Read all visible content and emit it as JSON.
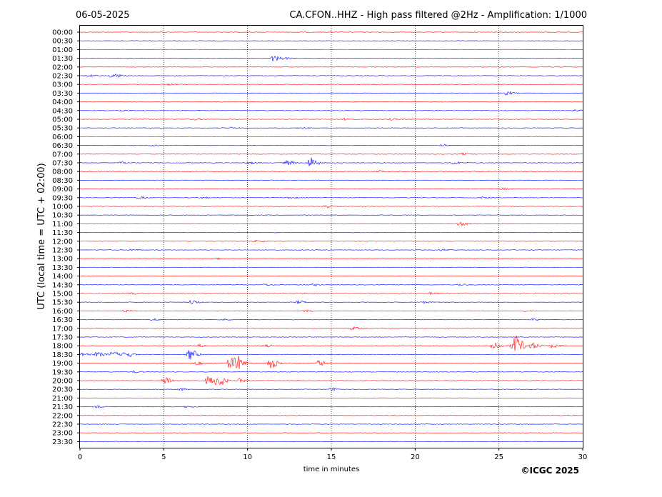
{
  "header": {
    "date": "06-05-2025",
    "title": "CA.CFON..HHZ - High pass filtered @2Hz - Amplification: 1/1000"
  },
  "footer": {
    "copyright": "©ICGC 2025"
  },
  "chart_data": {
    "type": "line",
    "title": "CA.CFON..HHZ - High pass filtered @2Hz - Amplification: 1/1000",
    "xlabel": "time in minutes",
    "ylabel": "UTC (local time = UTC + 02:00)",
    "xlim": [
      0,
      30
    ],
    "x_ticks": [
      0,
      5,
      10,
      15,
      20,
      25,
      30
    ],
    "x_tick_labels": [
      "0",
      "5",
      "10",
      "15",
      "20",
      "25",
      "30"
    ],
    "grid": "vertical dotted lines at each x tick",
    "trace_colors": [
      "#ff0000",
      "#0000ff"
    ],
    "rows": [
      {
        "label": "00:00",
        "color": "#ff0000",
        "events": []
      },
      {
        "label": "00:30",
        "color": "#0000ff",
        "events": []
      },
      {
        "label": "01:00",
        "color": "#ff0000",
        "events": []
      },
      {
        "label": "01:30",
        "color": "#0000ff",
        "events": [
          {
            "t": 11.5,
            "amp": 0.35
          },
          {
            "t": 12.2,
            "amp": 0.12
          }
        ]
      },
      {
        "label": "02:00",
        "color": "#ff0000",
        "events": []
      },
      {
        "label": "02:30",
        "color": "#0000ff",
        "events": [
          {
            "t": 0.5,
            "amp": 0.12
          },
          {
            "t": 1.9,
            "amp": 0.35
          }
        ]
      },
      {
        "label": "03:00",
        "color": "#ff0000",
        "events": [
          {
            "t": 5.3,
            "amp": 0.1
          }
        ]
      },
      {
        "label": "03:30",
        "color": "#0000ff",
        "events": [
          {
            "t": 25.4,
            "amp": 0.22
          }
        ]
      },
      {
        "label": "04:00",
        "color": "#ff0000",
        "events": []
      },
      {
        "label": "04:30",
        "color": "#0000ff",
        "events": [
          {
            "t": 2.3,
            "amp": 0.1
          },
          {
            "t": 29.5,
            "amp": 0.1
          }
        ]
      },
      {
        "label": "05:00",
        "color": "#ff0000",
        "events": [
          {
            "t": 6.8,
            "amp": 0.1
          },
          {
            "t": 15.8,
            "amp": 0.12
          },
          {
            "t": 18.5,
            "amp": 0.1
          }
        ]
      },
      {
        "label": "05:30",
        "color": "#0000ff",
        "events": [
          {
            "t": 8.9,
            "amp": 0.12
          },
          {
            "t": 13.1,
            "amp": 0.12
          }
        ]
      },
      {
        "label": "06:00",
        "color": "#ff0000",
        "events": []
      },
      {
        "label": "06:30",
        "color": "#0000ff",
        "events": [
          {
            "t": 4.2,
            "amp": 0.12
          },
          {
            "t": 21.6,
            "amp": 0.1
          }
        ]
      },
      {
        "label": "07:00",
        "color": "#ff0000",
        "events": [
          {
            "t": 22.8,
            "amp": 0.12
          }
        ]
      },
      {
        "label": "07:30",
        "color": "#0000ff",
        "events": [
          {
            "t": 2.4,
            "amp": 0.12
          },
          {
            "t": 10.1,
            "amp": 0.15
          },
          {
            "t": 12.3,
            "amp": 0.3
          },
          {
            "t": 13.7,
            "amp": 0.75
          },
          {
            "t": 22.2,
            "amp": 0.2
          }
        ]
      },
      {
        "label": "08:00",
        "color": "#ff0000",
        "events": [
          {
            "t": 17.8,
            "amp": 0.12
          }
        ]
      },
      {
        "label": "08:30",
        "color": "#0000ff",
        "events": []
      },
      {
        "label": "09:00",
        "color": "#ff0000",
        "events": [
          {
            "t": 25.2,
            "amp": 0.12
          }
        ]
      },
      {
        "label": "09:30",
        "color": "#0000ff",
        "events": [
          {
            "t": 3.5,
            "amp": 0.12
          },
          {
            "t": 7.3,
            "amp": 0.12
          },
          {
            "t": 12.5,
            "amp": 0.1
          },
          {
            "t": 24.0,
            "amp": 0.1
          }
        ]
      },
      {
        "label": "10:00",
        "color": "#ff0000",
        "events": [
          {
            "t": 14.6,
            "amp": 0.25
          }
        ]
      },
      {
        "label": "10:30",
        "color": "#0000ff",
        "events": []
      },
      {
        "label": "11:00",
        "color": "#ff0000",
        "events": [
          {
            "t": 22.6,
            "amp": 0.28
          }
        ]
      },
      {
        "label": "11:30",
        "color": "#0000ff",
        "events": []
      },
      {
        "label": "12:00",
        "color": "#ff0000",
        "events": [
          {
            "t": 10.5,
            "amp": 0.1
          }
        ]
      },
      {
        "label": "12:30",
        "color": "#0000ff",
        "events": [
          {
            "t": 3.0,
            "amp": 0.12
          },
          {
            "t": 21.5,
            "amp": 0.1
          }
        ]
      },
      {
        "label": "13:00",
        "color": "#ff0000",
        "events": [
          {
            "t": 8.0,
            "amp": 0.1
          }
        ]
      },
      {
        "label": "13:30",
        "color": "#0000ff",
        "events": []
      },
      {
        "label": "14:00",
        "color": "#ff0000",
        "events": []
      },
      {
        "label": "14:30",
        "color": "#0000ff",
        "events": [
          {
            "t": 11.0,
            "amp": 0.1
          },
          {
            "t": 13.9,
            "amp": 0.12
          },
          {
            "t": 22.6,
            "amp": 0.15
          }
        ]
      },
      {
        "label": "15:00",
        "color": "#ff0000",
        "events": [
          {
            "t": 3.0,
            "amp": 0.1
          },
          {
            "t": 20.9,
            "amp": 0.15
          }
        ]
      },
      {
        "label": "15:30",
        "color": "#0000ff",
        "events": [
          {
            "t": 6.6,
            "amp": 0.25
          },
          {
            "t": 13.0,
            "amp": 0.2
          },
          {
            "t": 20.5,
            "amp": 0.12
          }
        ]
      },
      {
        "label": "16:00",
        "color": "#ff0000",
        "events": [
          {
            "t": 2.6,
            "amp": 0.1
          },
          {
            "t": 13.4,
            "amp": 0.12
          },
          {
            "t": 26.5,
            "amp": 0.1
          }
        ]
      },
      {
        "label": "16:30",
        "color": "#0000ff",
        "events": [
          {
            "t": 4.3,
            "amp": 0.12
          },
          {
            "t": 8.6,
            "amp": 0.1
          },
          {
            "t": 27.0,
            "amp": 0.1
          }
        ]
      },
      {
        "label": "17:00",
        "color": "#ff0000",
        "events": [
          {
            "t": 16.2,
            "amp": 0.2
          }
        ]
      },
      {
        "label": "17:30",
        "color": "#0000ff",
        "events": []
      },
      {
        "label": "18:00",
        "color": "#ff0000",
        "events": [
          {
            "t": 7.1,
            "amp": 0.15
          },
          {
            "t": 11.0,
            "amp": 0.15
          },
          {
            "t": 24.6,
            "amp": 0.55
          },
          {
            "t": 25.8,
            "amp": 0.6
          },
          {
            "t": 26.0,
            "amp": 0.8
          },
          {
            "t": 26.9,
            "amp": 0.4
          },
          {
            "t": 28.1,
            "amp": 0.25
          }
        ]
      },
      {
        "label": "18:30",
        "color": "#0000ff",
        "events": [
          {
            "t": 0.1,
            "amp": 0.25
          },
          {
            "t": 1.0,
            "amp": 0.3
          },
          {
            "t": 1.9,
            "amp": 0.35
          },
          {
            "t": 2.7,
            "amp": 0.4
          },
          {
            "t": 6.5,
            "amp": 0.7
          }
        ]
      },
      {
        "label": "19:00",
        "color": "#ff0000",
        "events": [
          {
            "t": 6.9,
            "amp": 0.2
          },
          {
            "t": 8.9,
            "amp": 0.7
          },
          {
            "t": 9.3,
            "amp": 0.8
          },
          {
            "t": 11.3,
            "amp": 0.7
          },
          {
            "t": 14.2,
            "amp": 0.35
          }
        ]
      },
      {
        "label": "19:30",
        "color": "#0000ff",
        "events": [
          {
            "t": 3.2,
            "amp": 0.12
          }
        ]
      },
      {
        "label": "20:00",
        "color": "#ff0000",
        "events": [
          {
            "t": 5.0,
            "amp": 0.55
          },
          {
            "t": 7.6,
            "amp": 0.6
          },
          {
            "t": 8.2,
            "amp": 0.75
          },
          {
            "t": 9.5,
            "amp": 0.2
          }
        ]
      },
      {
        "label": "20:30",
        "color": "#0000ff",
        "events": [
          {
            "t": 5.9,
            "amp": 0.15
          },
          {
            "t": 15.0,
            "amp": 0.2
          }
        ]
      },
      {
        "label": "21:00",
        "color": "#ff0000",
        "events": []
      },
      {
        "label": "21:30",
        "color": "#0000ff",
        "events": [
          {
            "t": 1.0,
            "amp": 0.12
          },
          {
            "t": 6.3,
            "amp": 0.1
          }
        ]
      },
      {
        "label": "22:00",
        "color": "#ff0000",
        "events": []
      },
      {
        "label": "22:30",
        "color": "#0000ff",
        "events": []
      },
      {
        "label": "23:00",
        "color": "#ff0000",
        "events": []
      },
      {
        "label": "23:30",
        "color": "#0000ff",
        "events": []
      }
    ]
  }
}
